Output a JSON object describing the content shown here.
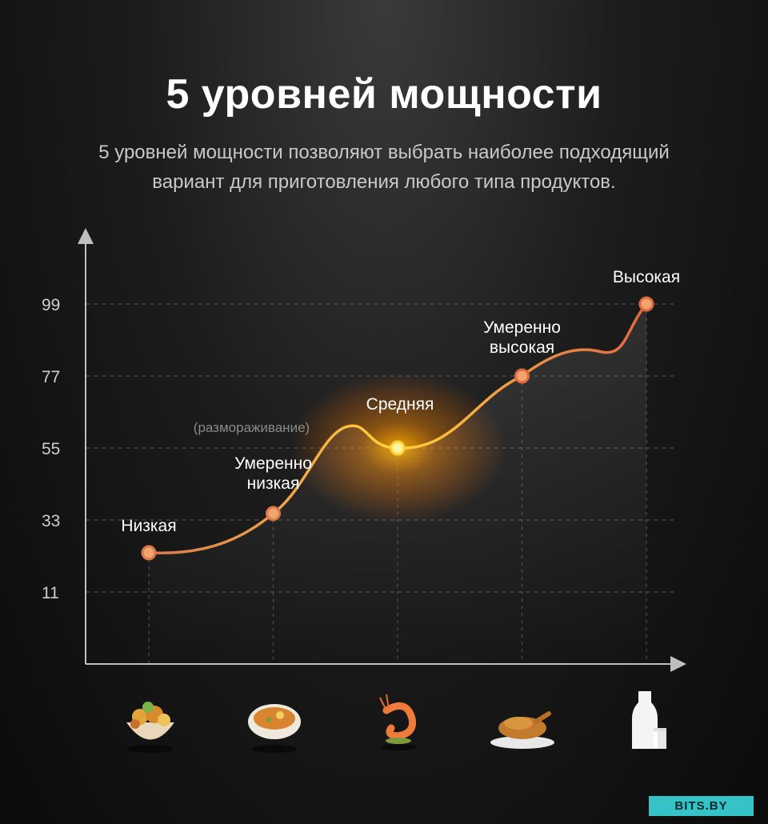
{
  "header": {
    "title": "5 уровней мощности",
    "subtitle_line1": "5 уровней мощности позволяют выбрать наиболее подходящий",
    "subtitle_line2": "вариант для приготовления любого типа продуктов."
  },
  "chart_data": {
    "type": "line",
    "y_ticks": [
      11,
      33,
      55,
      77,
      99
    ],
    "ylim": [
      -11,
      120
    ],
    "grid": true,
    "points": [
      {
        "label_lines": [
          "Низкая"
        ],
        "value": 23
      },
      {
        "label_lines": [
          "Умеренно",
          "низкая"
        ],
        "value": 35,
        "note": "(размораживание)"
      },
      {
        "label_lines": [
          "Средняя"
        ],
        "value": 55
      },
      {
        "label_lines": [
          "Умеренно",
          "высокая"
        ],
        "value": 77
      },
      {
        "label_lines": [
          "Высокая"
        ],
        "value": 99
      }
    ],
    "colors": {
      "low": "#d9794a",
      "mid": "#ffd43a",
      "high": "#e0683e"
    }
  },
  "food_icons": [
    "vegetables-bowl-icon",
    "soup-bowl-icon",
    "shrimp-icon",
    "roast-chicken-icon",
    "milk-bottle-icon"
  ],
  "brand": {
    "badge": "BITS.BY"
  }
}
